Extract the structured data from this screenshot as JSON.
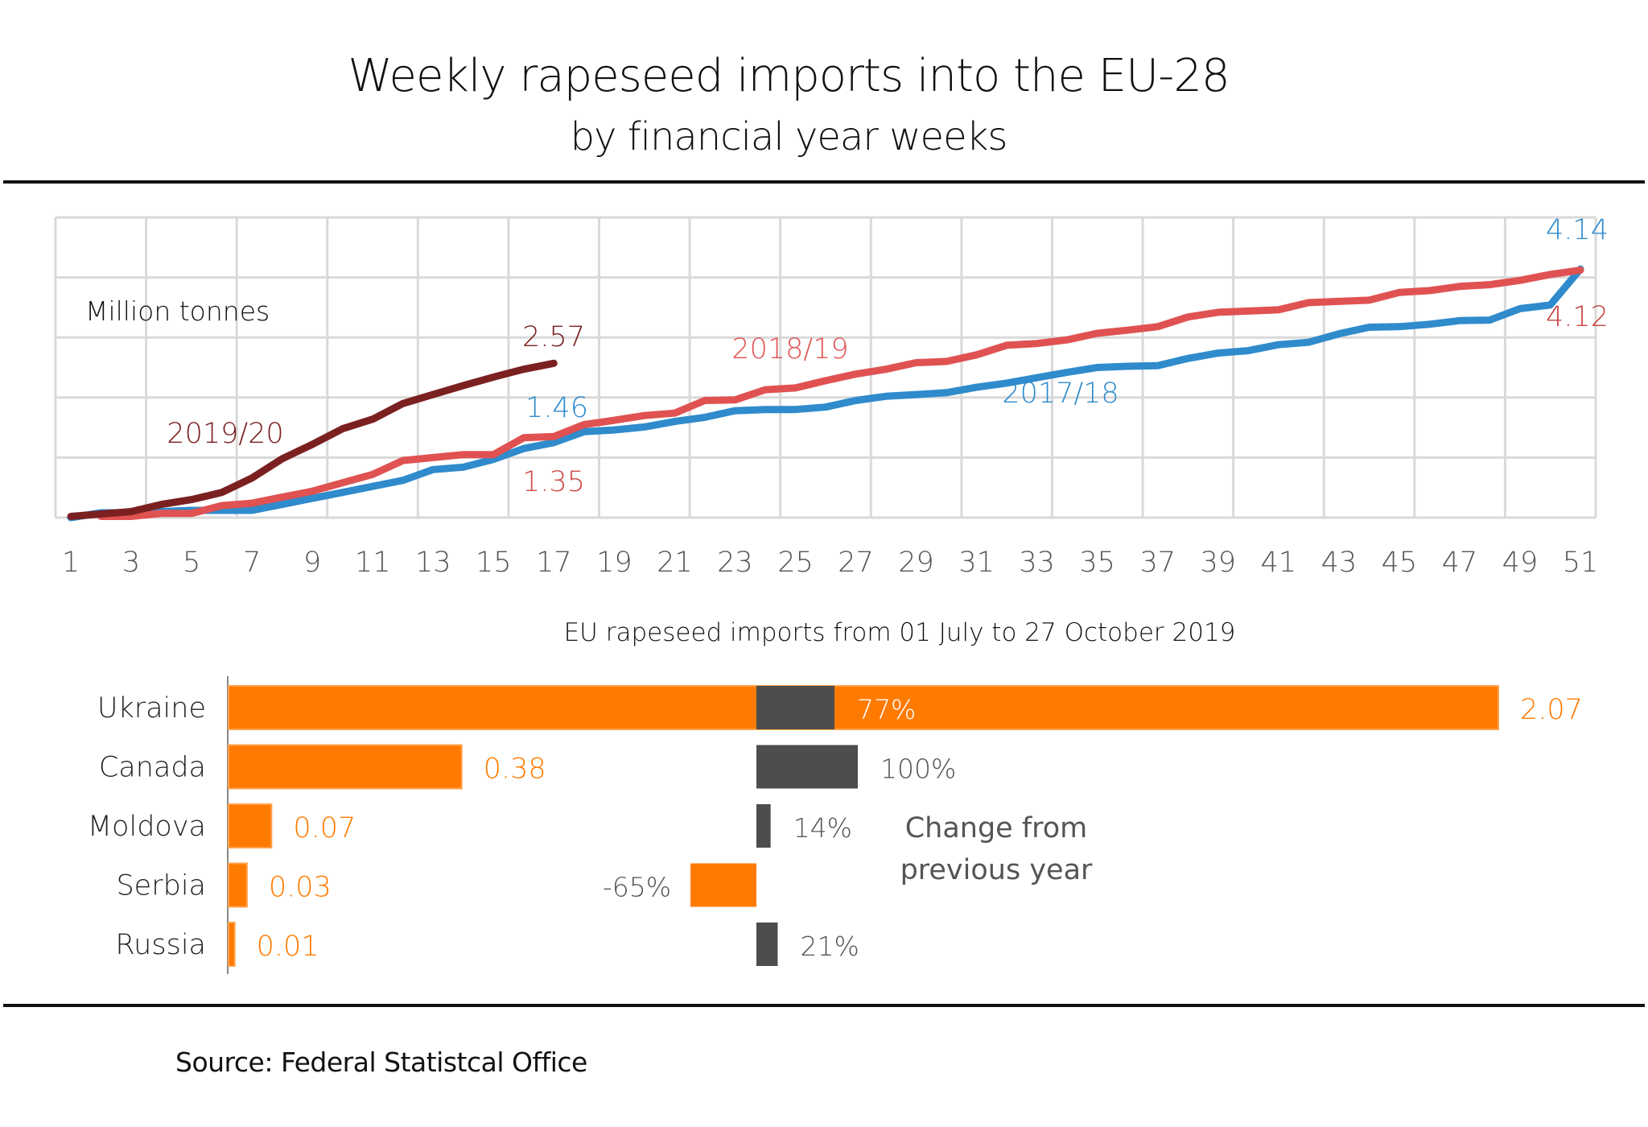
{
  "header": {
    "title": "Weekly rapeseed imports into the EU-28",
    "subtitle": "by financial year weeks"
  },
  "footer": {
    "source": "Source:  Federal Statistcal Office"
  },
  "chart_data": [
    {
      "type": "line",
      "title": "Weekly rapeseed imports into the EU-28",
      "subtitle": "by financial year weeks",
      "unit_label": "Million tonnes",
      "xlabel": "",
      "ylabel": "Million tonnes",
      "ylim": [
        0,
        5
      ],
      "xlim": [
        1,
        51
      ],
      "grid": true,
      "x_ticks": [
        "1",
        "3",
        "5",
        "7",
        "9",
        "11",
        "13",
        "15",
        "17",
        "19",
        "21",
        "23",
        "25",
        "27",
        "29",
        "31",
        "33",
        "35",
        "37",
        "39",
        "41",
        "43",
        "45",
        "47",
        "49",
        "51"
      ],
      "series": [
        {
          "name": "2017/18",
          "color": "#2f8bcc",
          "x": [
            1,
            2,
            3,
            4,
            5,
            6,
            7,
            8,
            9,
            10,
            11,
            12,
            13,
            14,
            15,
            16,
            17,
            18,
            19,
            20,
            21,
            22,
            23,
            24,
            25,
            26,
            27,
            28,
            29,
            30,
            31,
            32,
            33,
            34,
            35,
            36,
            37,
            38,
            39,
            40,
            41,
            42,
            43,
            44,
            45,
            46,
            47,
            48,
            49,
            50,
            51
          ],
          "values": [
            0.0,
            0.08,
            0.08,
            0.1,
            0.12,
            0.12,
            0.12,
            0.22,
            0.32,
            0.42,
            0.52,
            0.62,
            0.8,
            0.84,
            0.97,
            1.15,
            1.25,
            1.43,
            1.46,
            1.51,
            1.6,
            1.67,
            1.78,
            1.8,
            1.8,
            1.84,
            1.95,
            2.02,
            2.05,
            2.08,
            2.17,
            2.24,
            2.33,
            2.42,
            2.5,
            2.52,
            2.53,
            2.65,
            2.74,
            2.78,
            2.88,
            2.92,
            3.06,
            3.17,
            3.18,
            3.22,
            3.28,
            3.29,
            3.48,
            3.54,
            4.14
          ],
          "end_label": "4.14",
          "mid_label": "1.46",
          "name_label": "2017/18"
        },
        {
          "name": "2018/19",
          "color": "#e05252",
          "x": [
            2,
            3,
            4,
            5,
            6,
            7,
            8,
            9,
            10,
            11,
            12,
            13,
            14,
            15,
            16,
            17,
            18,
            19,
            20,
            21,
            22,
            23,
            24,
            25,
            26,
            27,
            28,
            29,
            30,
            31,
            32,
            33,
            34,
            35,
            36,
            37,
            38,
            39,
            40,
            41,
            42,
            43,
            44,
            45,
            46,
            47,
            48,
            49,
            50,
            51
          ],
          "values": [
            0.02,
            0.02,
            0.07,
            0.07,
            0.2,
            0.24,
            0.34,
            0.44,
            0.58,
            0.72,
            0.95,
            1.0,
            1.05,
            1.05,
            1.33,
            1.35,
            1.55,
            1.62,
            1.7,
            1.74,
            1.95,
            1.96,
            2.13,
            2.16,
            2.28,
            2.39,
            2.47,
            2.58,
            2.6,
            2.71,
            2.87,
            2.9,
            2.96,
            3.07,
            3.12,
            3.18,
            3.34,
            3.42,
            3.44,
            3.46,
            3.58,
            3.6,
            3.62,
            3.75,
            3.78,
            3.85,
            3.88,
            3.95,
            4.05,
            4.12
          ],
          "end_label": "4.12",
          "mid_label": "1.35",
          "name_label": "2018/19"
        },
        {
          "name": "2019/20",
          "color": "#7b2020",
          "x": [
            1,
            2,
            3,
            4,
            5,
            6,
            7,
            8,
            9,
            10,
            11,
            12,
            13,
            14,
            15,
            16,
            17
          ],
          "values": [
            0.02,
            0.06,
            0.1,
            0.22,
            0.3,
            0.42,
            0.66,
            0.98,
            1.22,
            1.48,
            1.64,
            1.9,
            2.05,
            2.2,
            2.34,
            2.47,
            2.57
          ],
          "end_label": "2.57",
          "name_label": "2019/20"
        }
      ]
    },
    {
      "type": "bar",
      "orientation": "horizontal",
      "title": "EU rapeseed imports from 01 July to 27 October 2019",
      "categories": [
        "Ukraine",
        "Canada",
        "Moldova",
        "Serbia",
        "Russia"
      ],
      "series": [
        {
          "name": "Imports (million tonnes)",
          "color": "#ff7a00",
          "values": [
            2.07,
            0.38,
            0.07,
            0.03,
            0.01
          ],
          "labels": [
            "2.07",
            "0.38",
            "0.07",
            "0.03",
            "0.01"
          ]
        },
        {
          "name": "Change from previous year",
          "positive_color": "#4d4d4d",
          "negative_color": "#ff7a00",
          "values": [
            77,
            100,
            14,
            -65,
            21
          ],
          "labels": [
            "77%",
            "100%",
            "14%",
            "-65%",
            "21%"
          ]
        }
      ],
      "legend_annotation": [
        "Change from",
        "previous year"
      ]
    }
  ]
}
